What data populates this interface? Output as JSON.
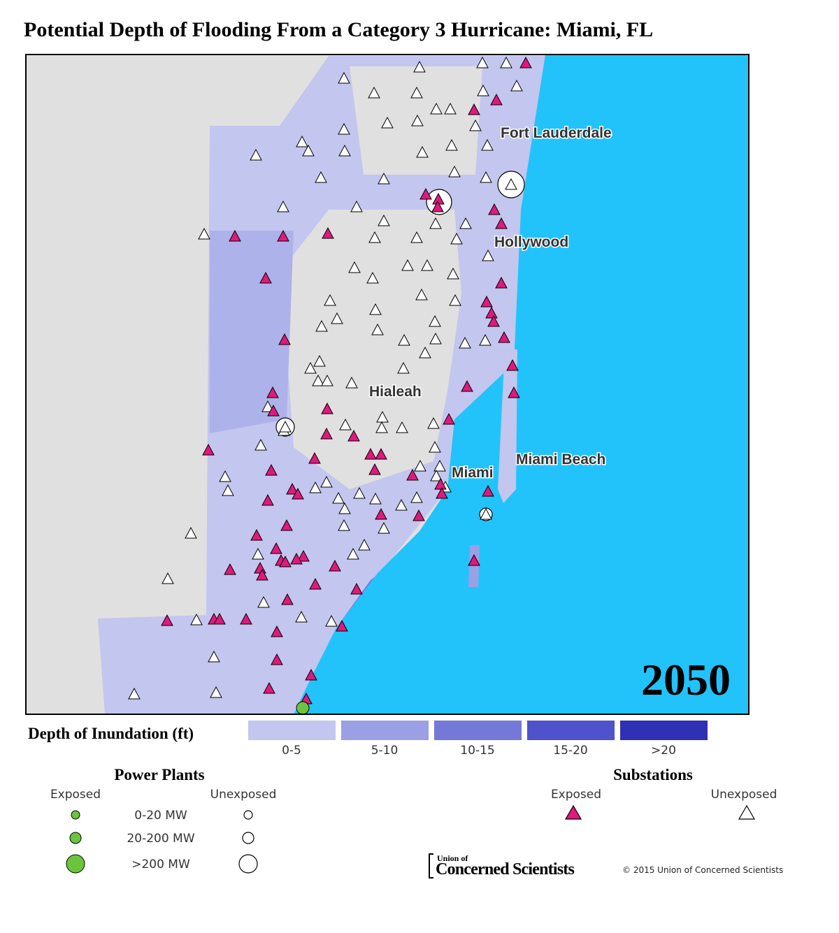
{
  "title": "Potential Depth of Flooding From a Category 3 Hurricane:  Miami, FL",
  "map": {
    "places": [
      "Fort Lauderdale",
      "Hollywood",
      "Hialeah",
      "Miami",
      "Miami Beach"
    ],
    "year": "2050"
  },
  "legend": {
    "depth": {
      "title": "Depth of Inundation (ft)",
      "classes": [
        {
          "label": "0-5",
          "color": "#c3c6ee"
        },
        {
          "label": "5-10",
          "color": "#9ba0e4"
        },
        {
          "label": "10-15",
          "color": "#7479d8"
        },
        {
          "label": "15-20",
          "color": "#4e53cb"
        },
        {
          "label": ">20",
          "color": "#2f30b3"
        }
      ]
    },
    "power_plants": {
      "title": "Power Plants",
      "exposed": "Exposed",
      "unexposed": "Unexposed",
      "sizes": [
        "0-20 MW",
        "20-200 MW",
        ">200 MW"
      ]
    },
    "substations": {
      "title": "Substations",
      "exposed": "Exposed",
      "unexposed": "Unexposed"
    }
  },
  "footer": {
    "logo_small": "Union of",
    "logo_big": "Concerned Scientists",
    "copyright": "© 2015 Union of Concerned Scientists"
  }
}
